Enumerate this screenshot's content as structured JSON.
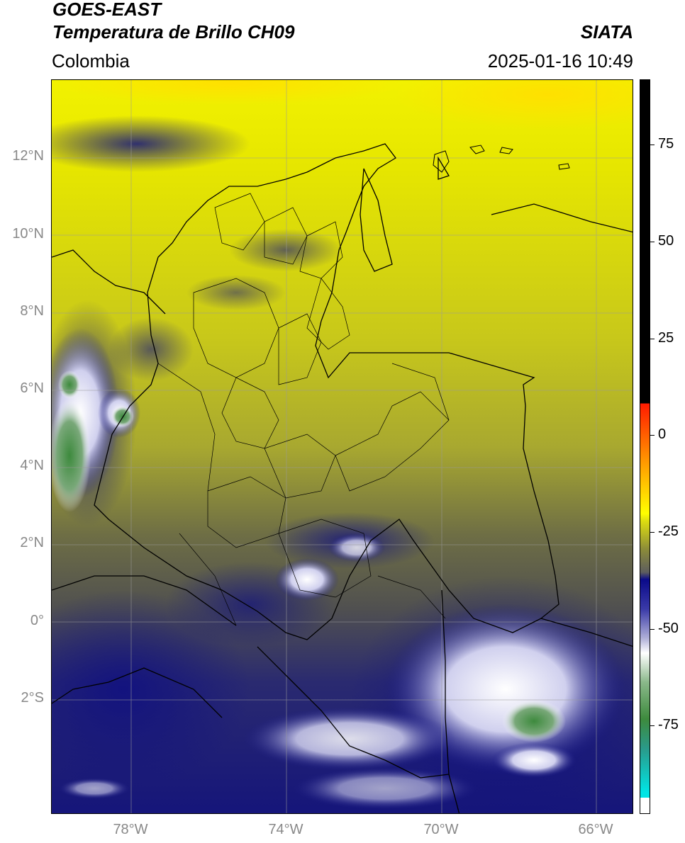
{
  "header": {
    "satellite": "GOES-EAST",
    "product": "Temperatura de Brillo CH09",
    "source": "SIATA",
    "region": "Colombia",
    "datetime": "2025-01-16 10:49"
  },
  "map": {
    "lat_labels": [
      "12°N",
      "10°N",
      "8°N",
      "6°N",
      "4°N",
      "2°N",
      "0°",
      "2°S"
    ],
    "lon_labels": [
      "78°W",
      "74°W",
      "70°W",
      "66°W"
    ]
  },
  "colorbar": {
    "tick_labels": [
      "75",
      "50",
      "25",
      "0",
      "-25",
      "-50",
      "-75"
    ],
    "colors": {
      "black": "#000000",
      "red": "#ff1a00",
      "orange": "#ff9900",
      "yellow": "#ffff00",
      "olive": "#5e5e3f",
      "navy": "#0a0a8a",
      "white": "#ffffff",
      "green": "#3d8a3d",
      "cyan": "#00e5e5"
    }
  }
}
